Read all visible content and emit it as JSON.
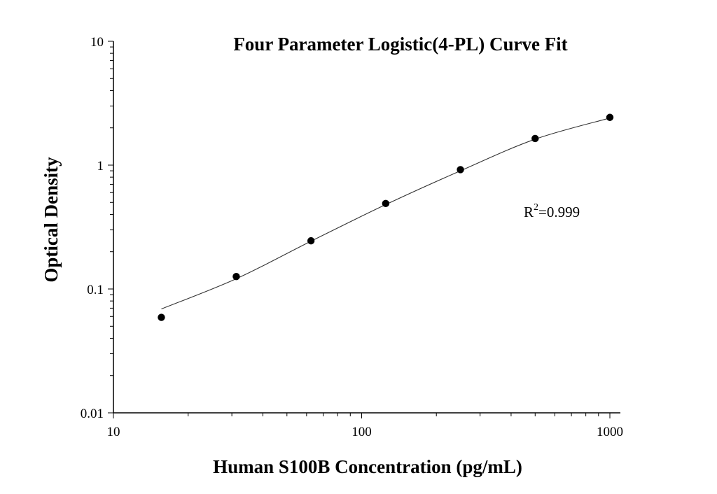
{
  "chart_data": {
    "type": "scatter",
    "title": "Four Parameter Logistic(4-PL) Curve Fit",
    "xlabel": "Human S100B Concentration (pg/mL)",
    "ylabel": "Optical Density",
    "x_scale": "log",
    "y_scale": "log",
    "xlim": [
      10,
      1000
    ],
    "ylim": [
      0.01,
      10
    ],
    "x_ticks": [
      "10",
      "100",
      "1000"
    ],
    "y_ticks": [
      "0.01",
      "0.1",
      "1",
      "10"
    ],
    "grid": false,
    "annotation": {
      "text_base": "R",
      "superscript": "2",
      "text_rest": "=0.999"
    },
    "points": {
      "x": [
        15.6,
        31.25,
        62.5,
        125,
        250,
        500,
        1000
      ],
      "y": [
        0.059,
        0.126,
        0.245,
        0.49,
        0.92,
        1.64,
        2.43
      ]
    },
    "fit_curve": {
      "x": [
        15.6,
        31.25,
        62.5,
        125,
        250,
        500,
        1000
      ],
      "y": [
        0.069,
        0.121,
        0.243,
        0.48,
        0.9,
        1.62,
        2.4
      ]
    },
    "colors": {
      "points": "#000000",
      "curve": "#333333"
    }
  }
}
